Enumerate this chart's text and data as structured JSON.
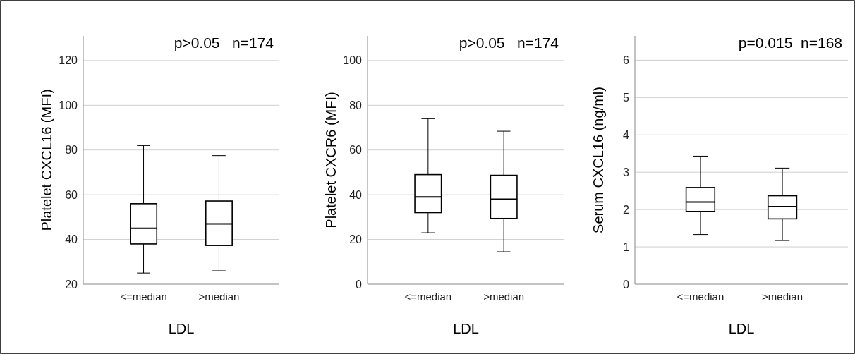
{
  "chart_data": [
    {
      "type": "box",
      "categories": [
        "<=median",
        ">median"
      ],
      "xlabel": "LDL",
      "ylabel": "Platelet CXCL16 (MFI)",
      "annotations": [
        "p>0.05   n=174"
      ],
      "ylim": [
        20,
        131
      ],
      "yticks": [
        20,
        40,
        60,
        80,
        100,
        120
      ],
      "grid": "y",
      "boxes": [
        {
          "low": 25,
          "q1": 38,
          "median": 45,
          "q3": 56,
          "high": 82
        },
        {
          "low": 26,
          "q1": 37.3,
          "median": 47,
          "q3": 57.2,
          "high": 77.5
        }
      ]
    },
    {
      "type": "box",
      "categories": [
        "<=median",
        ">median"
      ],
      "xlabel": "LDL",
      "ylabel": "Platelet CXCR6 (MFI)",
      "annotations": [
        "p>0.05   n=174"
      ],
      "ylim": [
        0,
        111
      ],
      "yticks": [
        0,
        20,
        40,
        60,
        80,
        100
      ],
      "grid": "y",
      "boxes": [
        {
          "low": 23,
          "q1": 32,
          "median": 39,
          "q3": 49,
          "high": 74
        },
        {
          "low": 14.5,
          "q1": 29.4,
          "median": 38,
          "q3": 48.7,
          "high": 68.4
        }
      ]
    },
    {
      "type": "box",
      "categories": [
        "<=median",
        ">median"
      ],
      "xlabel": "LDL",
      "ylabel": "Serum CXCL16 (ng/ml)",
      "annotations": [
        "p=0.015  n=168"
      ],
      "ylim": [
        0,
        6.65
      ],
      "yticks": [
        0,
        1,
        2,
        3,
        4,
        5,
        6
      ],
      "grid": "y",
      "boxes": [
        {
          "low": 1.33,
          "q1": 1.95,
          "median": 2.2,
          "q3": 2.59,
          "high": 3.43
        },
        {
          "low": 1.17,
          "q1": 1.75,
          "median": 2.08,
          "q3": 2.37,
          "high": 3.11
        }
      ]
    }
  ]
}
